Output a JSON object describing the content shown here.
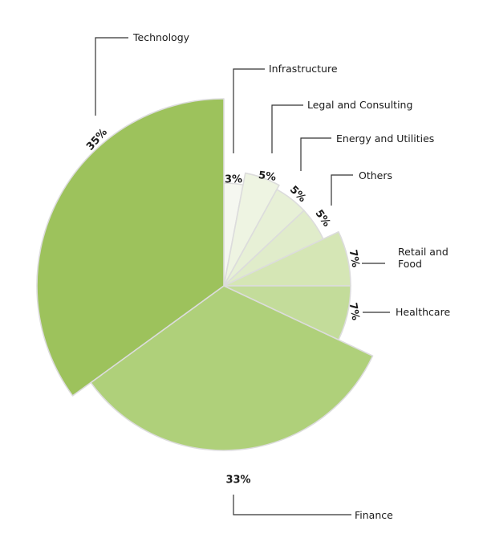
{
  "chart_data": {
    "type": "pie",
    "title": "",
    "slices": [
      {
        "label": "Infrastructure",
        "value": 3,
        "value_label": "3%",
        "color": "#f5f7f0"
      },
      {
        "label": "Legal and Consulting",
        "value": 5,
        "value_label": "5%",
        "color": "#eef4e2"
      },
      {
        "label": "Energy and Utilities",
        "value": 5,
        "value_label": "5%",
        "color": "#e7f0d6"
      },
      {
        "label": "Others",
        "value": 5,
        "value_label": "5%",
        "color": "#e0ecca"
      },
      {
        "label": "Retail and Food",
        "label_lines": [
          "Retail and",
          "Food"
        ],
        "value": 7,
        "value_label": "7%",
        "color": "#d5e6b5"
      },
      {
        "label": "Healthcare",
        "value": 7,
        "value_label": "7%",
        "color": "#c3dc9a"
      },
      {
        "label": "Finance",
        "value": 33,
        "value_label": "33%",
        "color": "#afd07a"
      },
      {
        "label": "Technology",
        "value": 35,
        "value_label": "35%",
        "color": "#9dc25c"
      }
    ]
  }
}
